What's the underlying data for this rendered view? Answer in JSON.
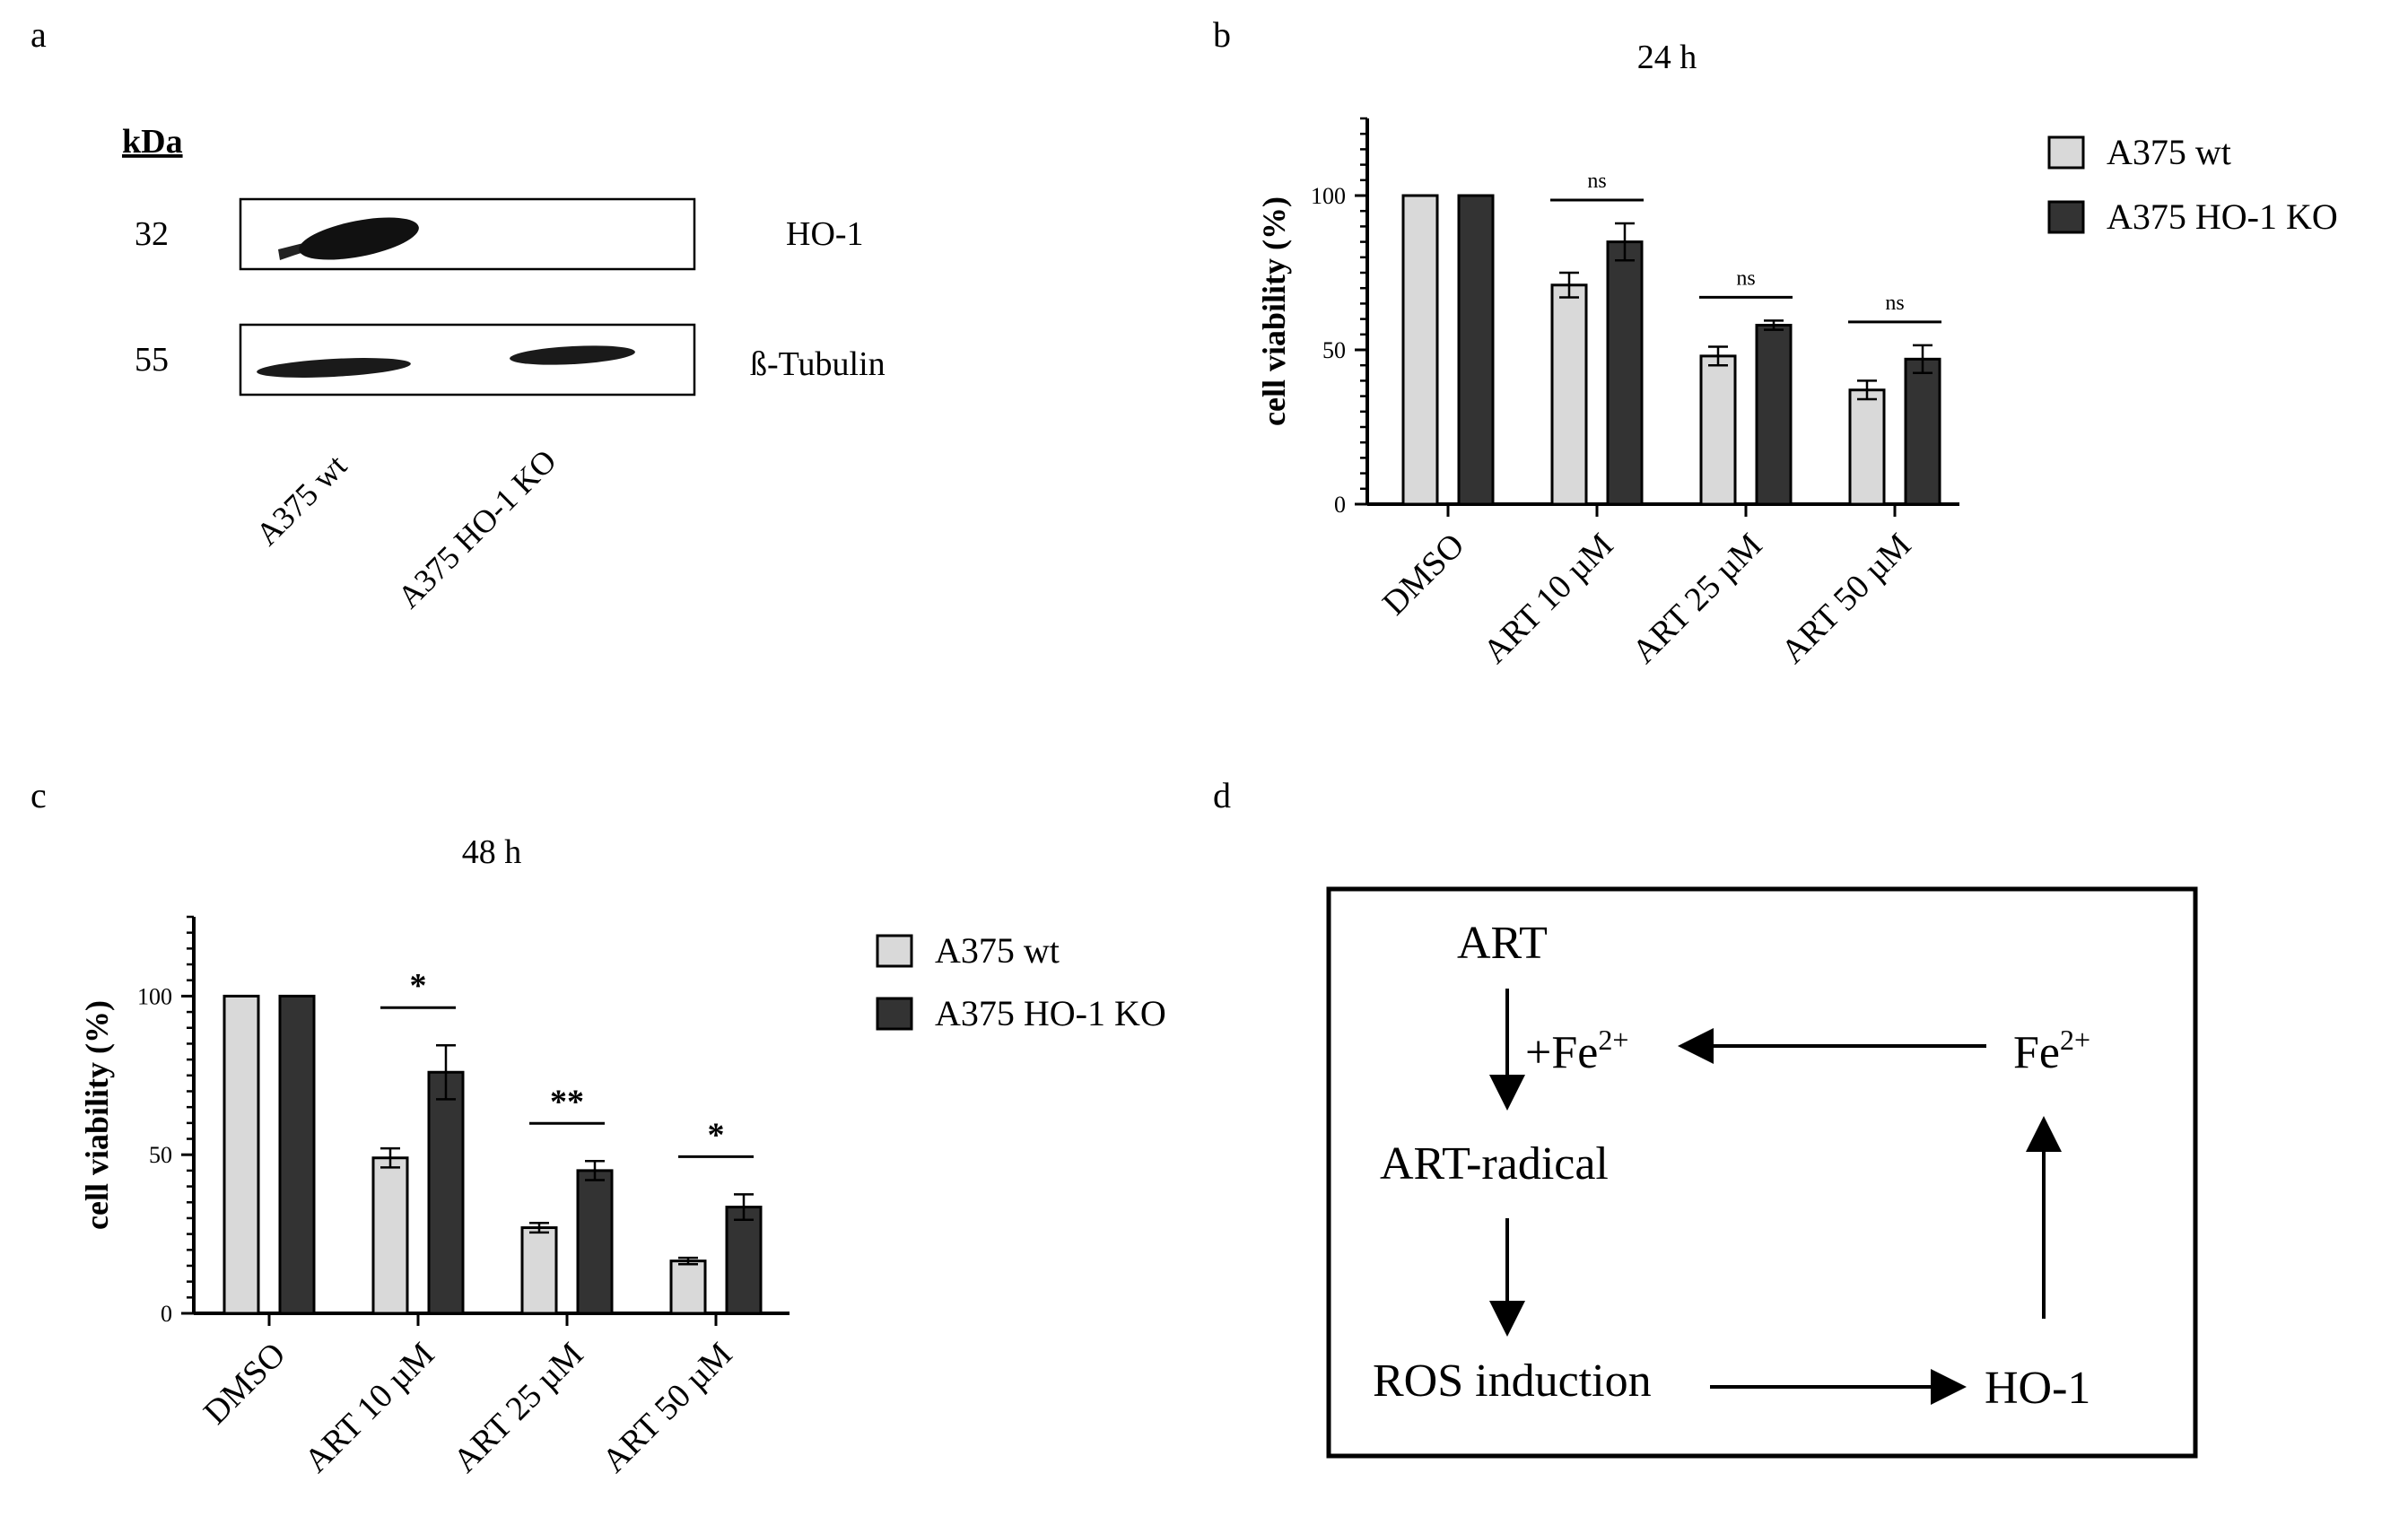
{
  "panel_labels": {
    "a": "a",
    "b": "b",
    "c": "c",
    "d": "d"
  },
  "western_blot": {
    "unit_header": "kDa",
    "rows": [
      {
        "kda": "32",
        "protein": "HO-1"
      },
      {
        "kda": "55",
        "protein": "ß-Tubulin"
      }
    ],
    "lanes": [
      "A375 wt",
      "A375 HO-1 KO"
    ]
  },
  "chart_data": [
    {
      "type": "bar",
      "title": "24 h",
      "xlabel": "",
      "ylabel": "cell viability (%)",
      "ylim": [
        0,
        125
      ],
      "yticks": [
        0,
        50,
        100
      ],
      "categories": [
        "DMSO",
        "ART 10 µM",
        "ART 25 µM",
        "ART 50 µM"
      ],
      "series": [
        {
          "name": "A375 wt",
          "values": [
            100,
            71,
            48,
            37
          ],
          "errors": [
            0,
            4,
            3,
            3
          ],
          "color": "#d9d9d9"
        },
        {
          "name": "A375 HO-1 KO",
          "values": [
            100,
            85,
            58,
            47
          ],
          "errors": [
            0,
            6,
            1.5,
            4.5
          ],
          "color": "#333333"
        }
      ],
      "significance": [
        {
          "category": "ART 10 µM",
          "label": "ns"
        },
        {
          "category": "ART 25 µM",
          "label": "ns"
        },
        {
          "category": "ART 50 µM",
          "label": "ns"
        }
      ],
      "legend": "right"
    },
    {
      "type": "bar",
      "title": "48 h",
      "xlabel": "",
      "ylabel": "cell viability (%)",
      "ylim": [
        0,
        125
      ],
      "yticks": [
        0,
        50,
        100
      ],
      "categories": [
        "DMSO",
        "ART 10 µM",
        "ART 25 µM",
        "ART 50 µM"
      ],
      "series": [
        {
          "name": "A375 wt",
          "values": [
            100,
            49,
            27,
            16.5
          ],
          "errors": [
            0,
            3,
            1.5,
            1
          ],
          "color": "#d9d9d9"
        },
        {
          "name": "A375 HO-1 KO",
          "values": [
            100,
            76,
            45,
            33.5
          ],
          "errors": [
            0,
            8.5,
            3,
            4
          ],
          "color": "#333333"
        }
      ],
      "significance": [
        {
          "category": "ART 10 µM",
          "label": "*"
        },
        {
          "category": "ART 25 µM",
          "label": "**"
        },
        {
          "category": "ART 50 µM",
          "label": "*"
        }
      ],
      "legend": "right"
    }
  ],
  "scheme": {
    "art": "ART",
    "fe_plus_prefix": "+Fe",
    "fe": "Fe",
    "fe_charge": "2+",
    "art_radical": "ART-radical",
    "ros": "ROS induction",
    "ho1": "HO-1"
  }
}
